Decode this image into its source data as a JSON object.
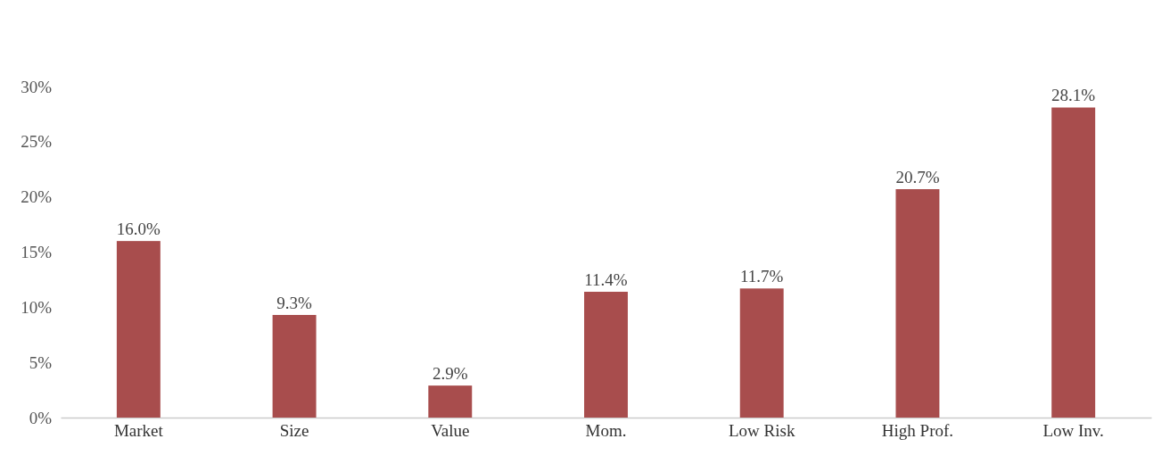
{
  "chart_data": {
    "type": "bar",
    "categories": [
      "Market",
      "Size",
      "Value",
      "Mom.",
      "Low Risk",
      "High Prof.",
      "Low Inv."
    ],
    "values": [
      16.0,
      9.3,
      2.9,
      11.4,
      11.7,
      20.7,
      28.1
    ],
    "value_labels": [
      "16.0%",
      "9.3%",
      "2.9%",
      "11.4%",
      "11.7%",
      "20.7%",
      "28.1%"
    ],
    "color": "#a84d4d",
    "ylim": [
      0,
      30
    ],
    "yticks": [
      {
        "value": 0,
        "label": "0%"
      },
      {
        "value": 5,
        "label": "5%"
      },
      {
        "value": 10,
        "label": "10%"
      },
      {
        "value": 15,
        "label": "15%"
      },
      {
        "value": 20,
        "label": "20%"
      },
      {
        "value": 25,
        "label": "25%"
      },
      {
        "value": 30,
        "label": "30%"
      }
    ]
  }
}
